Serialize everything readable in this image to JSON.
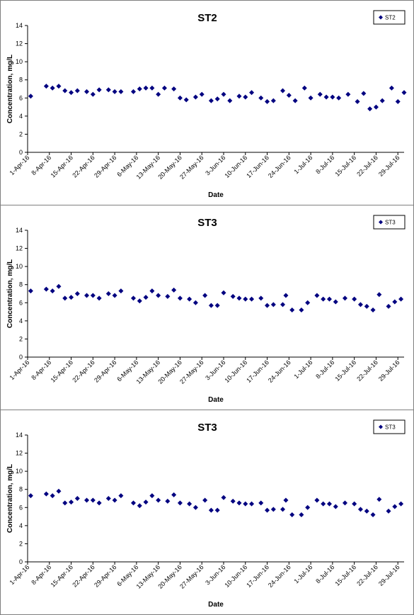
{
  "colors": {
    "marker": "#000080",
    "axis": "#000000",
    "frame": "#7f7f7f"
  },
  "chart_data": [
    {
      "type": "scatter",
      "title": "ST2",
      "xlabel": "Date",
      "ylabel": "Concentration, mg/L",
      "ylim": [
        0,
        14
      ],
      "yticks": [
        "0",
        "2",
        "4",
        "6",
        "8",
        "10",
        "12",
        "14"
      ],
      "xticks": [
        "1-Apr-16",
        "8-Apr-16",
        "15-Apr-16",
        "22-Apr-16",
        "29-Apr-16",
        "6-May-16",
        "13-May-16",
        "20-May-16",
        "27-May-16",
        "3-Jun-16",
        "10-Jun-16",
        "17-Jun-16",
        "24-Jun-16",
        "1-Jul-16",
        "8-Jul-16",
        "15-Jul-16",
        "22-Jul-16",
        "29-Jul-16"
      ],
      "legend": "top-right",
      "grid": false,
      "series": [
        {
          "name": "ST2",
          "x": [
            "2016-04-02",
            "2016-04-07",
            "2016-04-09",
            "2016-04-11",
            "2016-04-13",
            "2016-04-15",
            "2016-04-17",
            "2016-04-20",
            "2016-04-22",
            "2016-04-24",
            "2016-04-27",
            "2016-04-29",
            "2016-05-01",
            "2016-05-05",
            "2016-05-07",
            "2016-05-09",
            "2016-05-11",
            "2016-05-13",
            "2016-05-15",
            "2016-05-18",
            "2016-05-20",
            "2016-05-22",
            "2016-05-25",
            "2016-05-27",
            "2016-05-30",
            "2016-06-01",
            "2016-06-03",
            "2016-06-05",
            "2016-06-08",
            "2016-06-10",
            "2016-06-12",
            "2016-06-15",
            "2016-06-17",
            "2016-06-19",
            "2016-06-22",
            "2016-06-24",
            "2016-06-26",
            "2016-06-29",
            "2016-07-01",
            "2016-07-04",
            "2016-07-06",
            "2016-07-08",
            "2016-07-10",
            "2016-07-13",
            "2016-07-16",
            "2016-07-18",
            "2016-07-20",
            "2016-07-22",
            "2016-07-24",
            "2016-07-27",
            "2016-07-29",
            "2016-07-31"
          ],
          "values": [
            6.2,
            7.3,
            7.1,
            7.3,
            6.8,
            6.6,
            6.8,
            6.7,
            6.4,
            6.9,
            6.9,
            6.7,
            6.7,
            6.7,
            7.0,
            7.1,
            7.1,
            6.4,
            7.1,
            7.0,
            6.0,
            5.8,
            6.1,
            6.4,
            5.7,
            5.9,
            6.4,
            5.7,
            6.2,
            6.1,
            6.6,
            6.0,
            5.6,
            5.7,
            6.8,
            6.3,
            5.7,
            7.1,
            6.0,
            6.4,
            6.1,
            6.1,
            6.0,
            6.4,
            5.6,
            6.5,
            4.8,
            5.0,
            5.7,
            7.1,
            5.6,
            6.6
          ]
        }
      ]
    },
    {
      "type": "scatter",
      "title": "ST3",
      "xlabel": "Date",
      "ylabel": "Concentration, mg/L",
      "ylim": [
        0,
        14
      ],
      "yticks": [
        "0",
        "2",
        "4",
        "6",
        "8",
        "10",
        "12",
        "14"
      ],
      "xticks": [
        "1-Apr-16",
        "8-Apr-16",
        "15-Apr-16",
        "22-Apr-16",
        "29-Apr-16",
        "6-May-16",
        "13-May-16",
        "20-May-16",
        "27-May-16",
        "3-Jun-16",
        "10-Jun-16",
        "17-Jun-16",
        "24-Jun-16",
        "1-Jul-16",
        "8-Jul-16",
        "15-Jul-16",
        "22-Jul-16",
        "29-Jul-16"
      ],
      "legend": "top-right",
      "grid": false,
      "series": [
        {
          "name": "ST3",
          "x": [
            "2016-04-02",
            "2016-04-07",
            "2016-04-09",
            "2016-04-11",
            "2016-04-13",
            "2016-04-15",
            "2016-04-17",
            "2016-04-20",
            "2016-04-22",
            "2016-04-24",
            "2016-04-27",
            "2016-04-29",
            "2016-05-01",
            "2016-05-05",
            "2016-05-07",
            "2016-05-09",
            "2016-05-11",
            "2016-05-13",
            "2016-05-16",
            "2016-05-18",
            "2016-05-20",
            "2016-05-23",
            "2016-05-25",
            "2016-05-28",
            "2016-05-30",
            "2016-06-01",
            "2016-06-03",
            "2016-06-06",
            "2016-06-08",
            "2016-06-10",
            "2016-06-12",
            "2016-06-15",
            "2016-06-17",
            "2016-06-19",
            "2016-06-22",
            "2016-06-23",
            "2016-06-25",
            "2016-06-28",
            "2016-06-30",
            "2016-07-03",
            "2016-07-05",
            "2016-07-07",
            "2016-07-09",
            "2016-07-12",
            "2016-07-15",
            "2016-07-17",
            "2016-07-19",
            "2016-07-21",
            "2016-07-23",
            "2016-07-26",
            "2016-07-28",
            "2016-07-30"
          ],
          "values": [
            7.3,
            7.5,
            7.3,
            7.8,
            6.5,
            6.6,
            7.0,
            6.8,
            6.8,
            6.5,
            7.0,
            6.8,
            7.3,
            6.5,
            6.2,
            6.6,
            7.3,
            6.8,
            6.7,
            7.4,
            6.5,
            6.4,
            6.0,
            6.8,
            5.7,
            5.7,
            7.1,
            6.7,
            6.5,
            6.4,
            6.4,
            6.5,
            5.7,
            5.8,
            5.8,
            6.8,
            5.2,
            5.2,
            6.0,
            6.8,
            6.4,
            6.4,
            6.1,
            6.5,
            6.4,
            5.8,
            5.6,
            5.2,
            6.9,
            5.6,
            6.1,
            6.4
          ]
        }
      ]
    },
    {
      "type": "scatter",
      "title": "ST3",
      "xlabel": "Date",
      "ylabel": "Concentration, mg/L",
      "ylim": [
        0,
        14
      ],
      "yticks": [
        "0",
        "2",
        "4",
        "6",
        "8",
        "10",
        "12",
        "14"
      ],
      "xticks": [
        "1-Apr-16",
        "8-Apr-16",
        "15-Apr-16",
        "22-Apr-16",
        "29-Apr-16",
        "6-May-16",
        "13-May-16",
        "20-May-16",
        "27-May-16",
        "3-Jun-16",
        "10-Jun-16",
        "17-Jun-16",
        "24-Jun-16",
        "1-Jul-16",
        "8-Jul-16",
        "15-Jul-16",
        "22-Jul-16",
        "29-Jul-16"
      ],
      "legend": "top-right",
      "grid": false,
      "series": [
        {
          "name": "ST3",
          "x": [
            "2016-04-02",
            "2016-04-07",
            "2016-04-09",
            "2016-04-11",
            "2016-04-13",
            "2016-04-15",
            "2016-04-17",
            "2016-04-20",
            "2016-04-22",
            "2016-04-24",
            "2016-04-27",
            "2016-04-29",
            "2016-05-01",
            "2016-05-05",
            "2016-05-07",
            "2016-05-09",
            "2016-05-11",
            "2016-05-13",
            "2016-05-16",
            "2016-05-18",
            "2016-05-20",
            "2016-05-23",
            "2016-05-25",
            "2016-05-28",
            "2016-05-30",
            "2016-06-01",
            "2016-06-03",
            "2016-06-06",
            "2016-06-08",
            "2016-06-10",
            "2016-06-12",
            "2016-06-15",
            "2016-06-17",
            "2016-06-19",
            "2016-06-22",
            "2016-06-23",
            "2016-06-25",
            "2016-06-28",
            "2016-06-30",
            "2016-07-03",
            "2016-07-05",
            "2016-07-07",
            "2016-07-09",
            "2016-07-12",
            "2016-07-15",
            "2016-07-17",
            "2016-07-19",
            "2016-07-21",
            "2016-07-23",
            "2016-07-26",
            "2016-07-28",
            "2016-07-30"
          ],
          "values": [
            7.3,
            7.5,
            7.3,
            7.8,
            6.5,
            6.6,
            7.0,
            6.8,
            6.8,
            6.5,
            7.0,
            6.8,
            7.3,
            6.5,
            6.2,
            6.6,
            7.3,
            6.8,
            6.7,
            7.4,
            6.5,
            6.4,
            6.0,
            6.8,
            5.7,
            5.7,
            7.1,
            6.7,
            6.5,
            6.4,
            6.4,
            6.5,
            5.7,
            5.8,
            5.8,
            6.8,
            5.2,
            5.2,
            6.0,
            6.8,
            6.4,
            6.4,
            6.1,
            6.5,
            6.4,
            5.8,
            5.6,
            5.2,
            6.9,
            5.6,
            6.1,
            6.4
          ]
        }
      ]
    }
  ]
}
